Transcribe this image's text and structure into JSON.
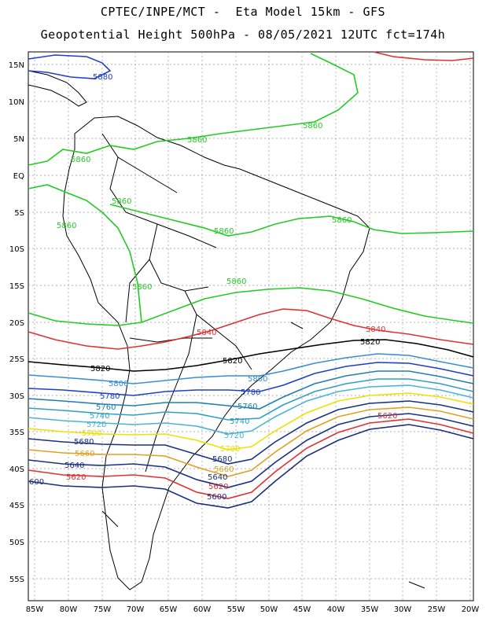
{
  "header": {
    "line1": "CPTEC/INPE/MCT -  Eta Model 15km - GFS",
    "line2": "Geopotential Height 500hPa - 08/05/2021 12UTC fct=174h"
  },
  "map": {
    "lat_labels": [
      "15N",
      "10N",
      "5N",
      "EQ",
      "5S",
      "10S",
      "15S",
      "20S",
      "25S",
      "30S",
      "35S",
      "40S",
      "45S",
      "50S",
      "55S"
    ],
    "lon_labels": [
      "85W",
      "80W",
      "75W",
      "70W",
      "65W",
      "60W",
      "55W",
      "50W",
      "45W",
      "40W",
      "35W",
      "30W",
      "25W",
      "20W"
    ],
    "contour_labels": [
      "5880",
      "5860",
      "5860",
      "5860",
      "5860",
      "5860",
      "5860",
      "5860",
      "5860",
      "5860",
      "5840",
      "5840",
      "5820",
      "5820",
      "5820",
      "5800",
      "5800",
      "5780",
      "5780",
      "5760",
      "5760",
      "5740",
      "5740",
      "5720",
      "5720",
      "5700",
      "5700",
      "5680",
      "5680",
      "5660",
      "5660",
      "5640",
      "5640",
      "5620",
      "5620",
      "5620",
      "5600",
      "600"
    ]
  }
}
